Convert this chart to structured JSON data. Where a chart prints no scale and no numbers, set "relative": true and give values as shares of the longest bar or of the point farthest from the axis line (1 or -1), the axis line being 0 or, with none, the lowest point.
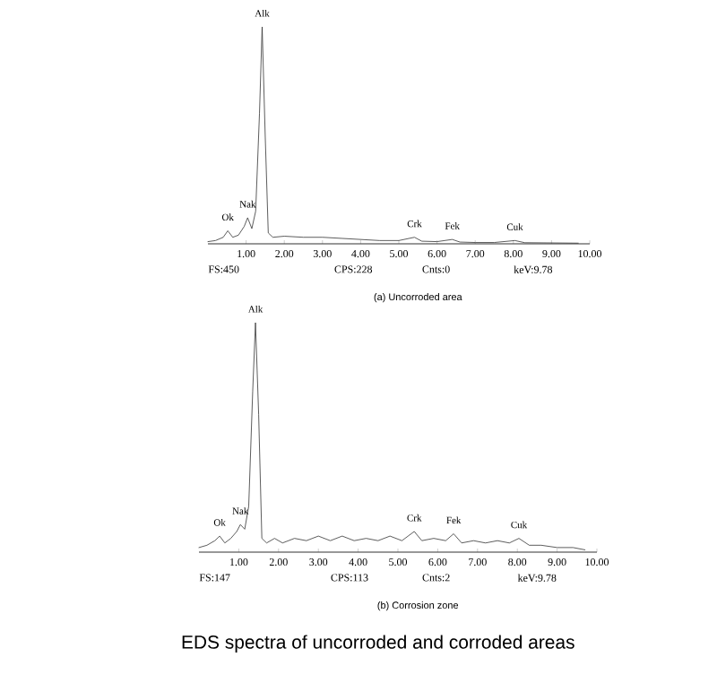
{
  "chart_data": [
    {
      "type": "line",
      "relative": true,
      "marker": "none",
      "xlabel": "(a) Uncorroded area",
      "xlim": [
        0,
        10
      ],
      "xticks": [
        {
          "value": 1,
          "label": "1.00"
        },
        {
          "value": 2,
          "label": "2.00"
        },
        {
          "value": 3,
          "label": "3.00"
        },
        {
          "value": 4,
          "label": "4.00"
        },
        {
          "value": 5,
          "label": "5.00"
        },
        {
          "value": 6,
          "label": "6.00"
        },
        {
          "value": 7,
          "label": "7.00"
        },
        {
          "value": 8,
          "label": "8.00"
        },
        {
          "value": 9,
          "label": "9.00"
        },
        {
          "value": 10,
          "label": "10.00"
        }
      ],
      "tick_labels": "x",
      "series": [
        {
          "color": "#333333",
          "x": [
            0.0,
            0.2,
            0.4,
            0.52,
            0.65,
            0.8,
            0.95,
            1.04,
            1.15,
            1.25,
            1.35,
            1.42,
            1.5,
            1.58,
            1.7,
            2.0,
            2.5,
            3.0,
            3.5,
            4.0,
            4.5,
            5.0,
            5.41,
            5.6,
            6.0,
            6.4,
            6.6,
            7.0,
            7.5,
            8.04,
            8.3,
            9.0,
            9.7
          ],
          "values": [
            0.01,
            0.015,
            0.03,
            0.06,
            0.03,
            0.04,
            0.08,
            0.12,
            0.07,
            0.15,
            0.6,
            1.0,
            0.5,
            0.05,
            0.03,
            0.035,
            0.03,
            0.03,
            0.025,
            0.02,
            0.015,
            0.015,
            0.03,
            0.012,
            0.01,
            0.02,
            0.008,
            0.006,
            0.006,
            0.015,
            0.005,
            0.004,
            0.003
          ]
        }
      ],
      "annotations": [
        "FS:450",
        "CPS:228",
        "Cnts:0",
        "keV:9.78",
        {
          "text": "Alk",
          "x": 1.42,
          "y": 1.0
        },
        {
          "text": "Nak",
          "x": 1.04,
          "y": 0.12
        },
        {
          "text": "Ok",
          "x": 0.52,
          "y": 0.06
        },
        {
          "text": "Crk",
          "x": 5.41,
          "y": 0.03
        },
        {
          "text": "Fek",
          "x": 6.4,
          "y": 0.02
        },
        {
          "text": "Cuk",
          "x": 8.04,
          "y": 0.015
        }
      ]
    },
    {
      "type": "line",
      "relative": true,
      "marker": "none",
      "xlabel": "(b) Corrosion zone",
      "xlim": [
        0,
        10
      ],
      "xticks": [
        {
          "value": 1,
          "label": "1.00"
        },
        {
          "value": 2,
          "label": "2.00"
        },
        {
          "value": 3,
          "label": "3.00"
        },
        {
          "value": 4,
          "label": "4.00"
        },
        {
          "value": 5,
          "label": "5.00"
        },
        {
          "value": 6,
          "label": "6.00"
        },
        {
          "value": 7,
          "label": "7.00"
        },
        {
          "value": 8,
          "label": "8.00"
        },
        {
          "value": 9,
          "label": "9.00"
        },
        {
          "value": 10,
          "label": "10.00"
        }
      ],
      "tick_labels": "x",
      "series": [
        {
          "color": "#333333",
          "x": [
            0.0,
            0.2,
            0.4,
            0.52,
            0.65,
            0.8,
            0.95,
            1.04,
            1.15,
            1.25,
            1.35,
            1.42,
            1.5,
            1.58,
            1.7,
            1.9,
            2.1,
            2.4,
            2.7,
            3.0,
            3.3,
            3.6,
            3.9,
            4.2,
            4.5,
            4.8,
            5.1,
            5.41,
            5.6,
            5.9,
            6.2,
            6.4,
            6.6,
            6.9,
            7.2,
            7.5,
            7.8,
            8.04,
            8.3,
            8.6,
            9.0,
            9.4,
            9.7
          ],
          "values": [
            0.02,
            0.03,
            0.05,
            0.07,
            0.04,
            0.06,
            0.09,
            0.12,
            0.1,
            0.2,
            0.7,
            1.0,
            0.6,
            0.06,
            0.04,
            0.06,
            0.04,
            0.06,
            0.05,
            0.07,
            0.05,
            0.07,
            0.05,
            0.06,
            0.05,
            0.07,
            0.05,
            0.09,
            0.05,
            0.06,
            0.05,
            0.08,
            0.04,
            0.05,
            0.04,
            0.05,
            0.04,
            0.06,
            0.03,
            0.03,
            0.02,
            0.02,
            0.01
          ]
        }
      ],
      "annotations": [
        "FS:147",
        "CPS:113",
        "Cnts:2",
        "keV:9.78",
        {
          "text": "Alk",
          "x": 1.42,
          "y": 1.0
        },
        {
          "text": "Nak",
          "x": 1.04,
          "y": 0.12
        },
        {
          "text": "Ok",
          "x": 0.52,
          "y": 0.07
        },
        {
          "text": "Crk",
          "x": 5.41,
          "y": 0.09
        },
        {
          "text": "Fek",
          "x": 6.4,
          "y": 0.08
        },
        {
          "text": "Cuk",
          "x": 8.04,
          "y": 0.06
        },
        "EDS spectra of uncorroded and corroded areas"
      ]
    }
  ]
}
